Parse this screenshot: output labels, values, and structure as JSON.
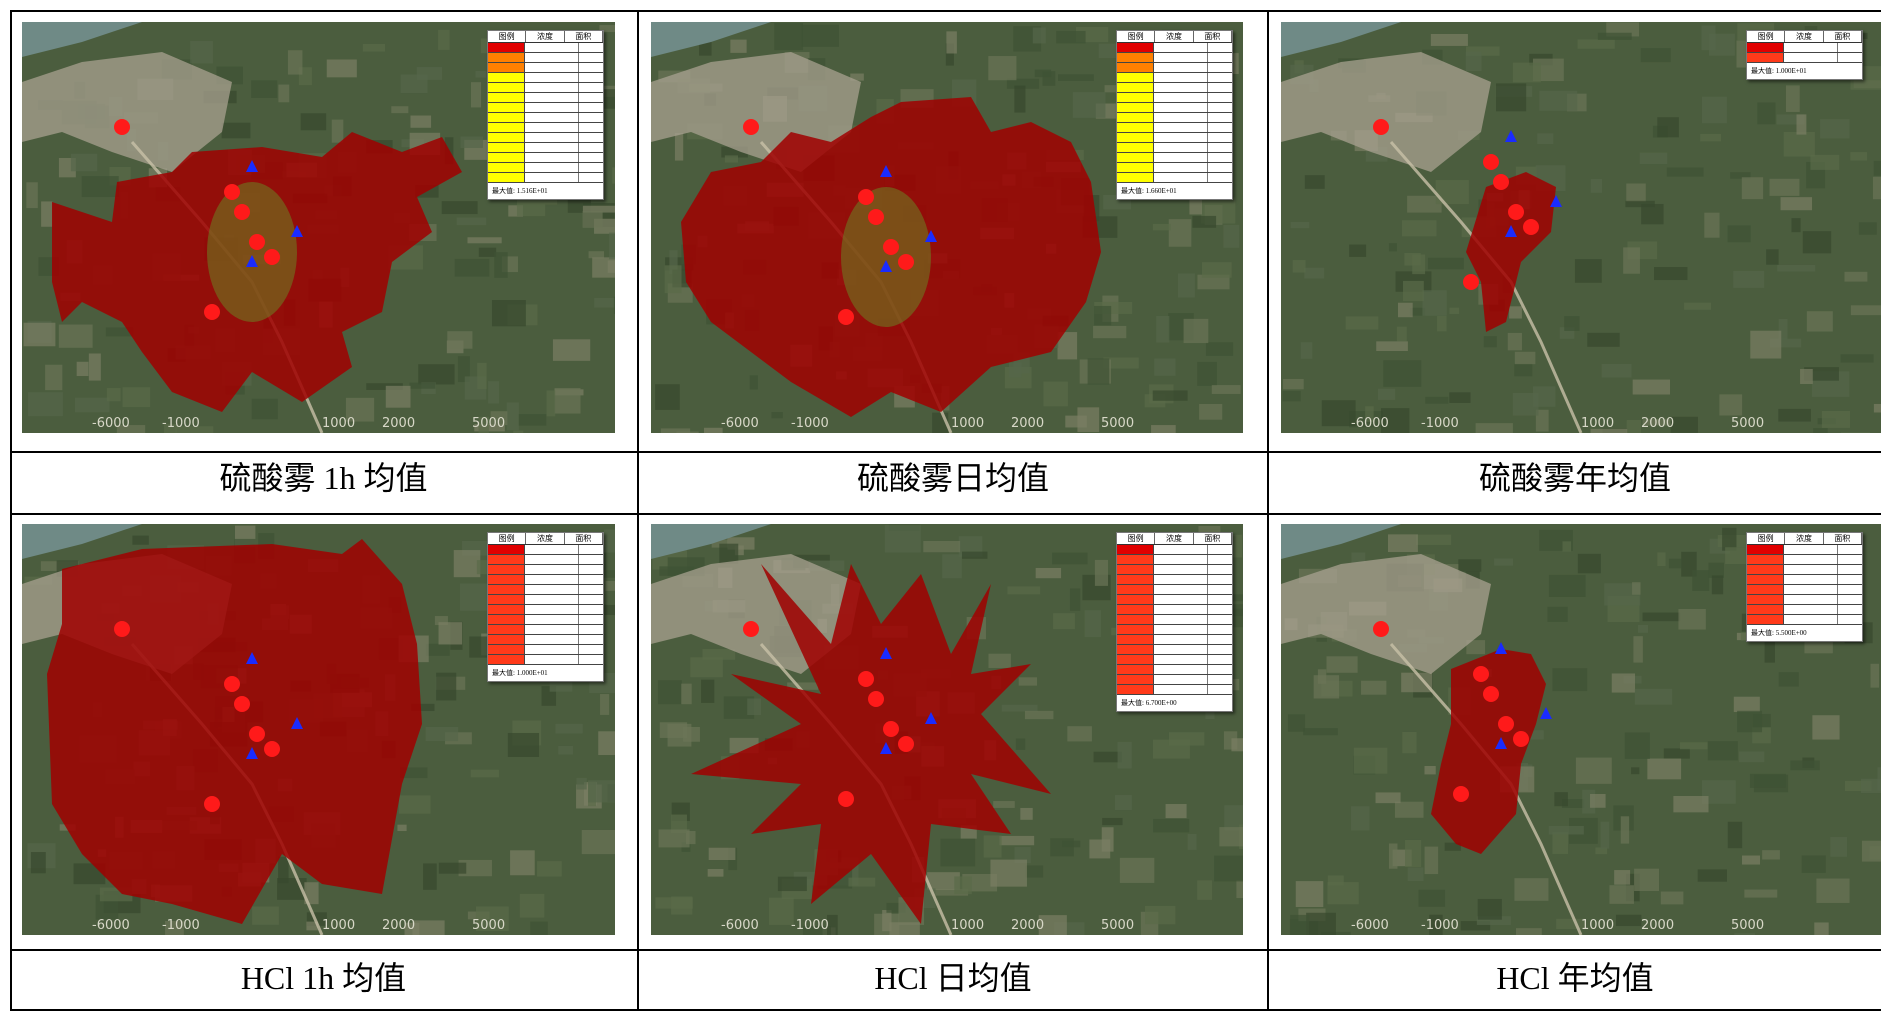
{
  "captions": [
    "硫酸雾  1h 均值",
    "硫酸雾日均值",
    "硫酸雾年均值",
    "HCl 1h 均值",
    "HCl 日均值",
    "HCl 年均值"
  ],
  "legend_headers": [
    "图例",
    "浓度",
    "面积"
  ],
  "legend_max_labels": [
    "最大值:  1.516E+01",
    "最大值:  1.660E+01",
    "最大值:  1.000E+01",
    "最大值:  1.000E+01",
    "最大值:  6.700E+00",
    "最大值:  5.500E+00"
  ],
  "axis_ticks": [
    "-6000",
    "-1000",
    "1000",
    "2000",
    "5000"
  ],
  "colors": {
    "plume_red": "#a00000",
    "marker_red": "#ff1a1a",
    "marker_blue": "#1a2bff",
    "legend_top": "#e00000",
    "legend_yellow": "#ffff00",
    "legend_orange": "#ff8000"
  }
}
